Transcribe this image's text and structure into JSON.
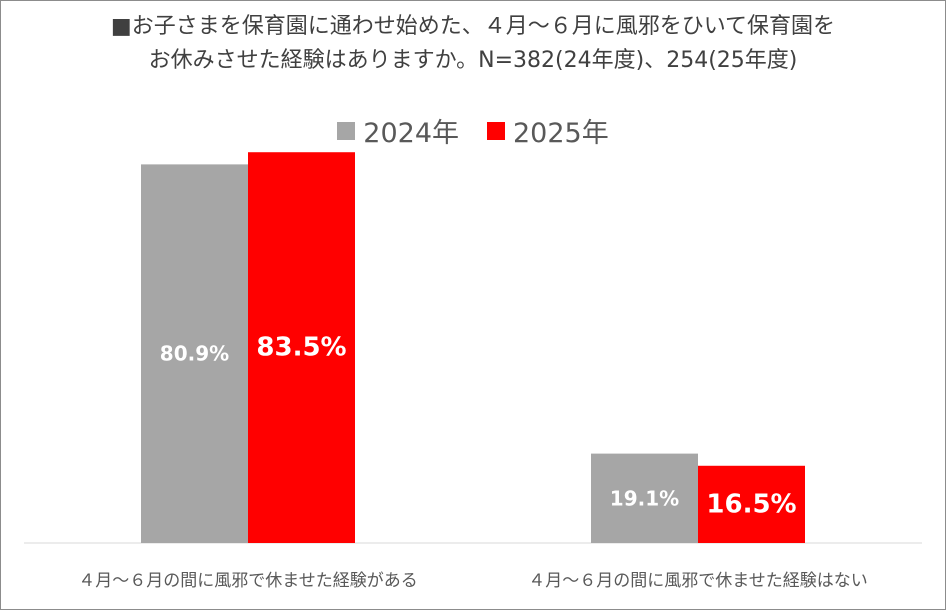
{
  "title": {
    "line1": "■お子さまを保育園に通わせ始めた、４月～６月に風邪をひいて保育園を",
    "line2": "お休みさせた経験はありますか。N=382(24年度)、254(25年度)"
  },
  "colors": {
    "series_2024": "#a6a6a6",
    "series_2025": "#ff0000",
    "data_label": "#ffffff",
    "axis_line": "#d9d9d9"
  },
  "chart_data": {
    "type": "bar",
    "categories": [
      "４月～６月の間に風邪で休ませた経験がある",
      "４月～６月の間に風邪で休ませた経験はない"
    ],
    "series": [
      {
        "name": "2024年",
        "values": [
          80.9,
          19.1
        ],
        "labels": [
          "80.9%",
          "19.1%"
        ]
      },
      {
        "name": "2025年",
        "values": [
          83.5,
          16.5
        ],
        "labels": [
          "83.5%",
          "16.5%"
        ]
      }
    ],
    "ylim": [
      0,
      100
    ],
    "legend_position": "top",
    "grid": false
  }
}
